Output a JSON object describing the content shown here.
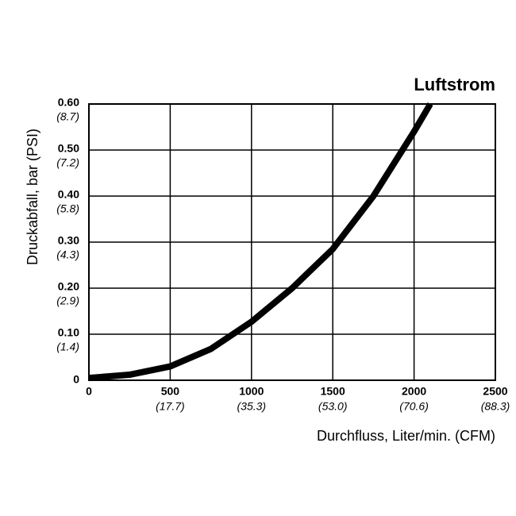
{
  "chart_data": {
    "type": "line",
    "title": "Luftstrom",
    "x_label": "Durchfluss, Liter/min. (CFM)",
    "y_label": "Druckabfall, bar (PSI)",
    "series": [
      {
        "name": null,
        "color": "#000000",
        "x": [
          0,
          250,
          500,
          750,
          1000,
          1250,
          1500,
          1750,
          2000,
          2100
        ],
        "values": [
          0.005,
          0.012,
          0.03,
          0.068,
          0.127,
          0.2,
          0.285,
          0.4,
          0.54,
          0.6
        ]
      }
    ],
    "xlim": [
      0,
      2500
    ],
    "xticks": [
      0,
      500,
      1000,
      1500,
      2000,
      2500
    ],
    "xtick_sublabels": [
      null,
      "(17.7)",
      "(35.3)",
      "(53.0)",
      "(70.6)",
      "(88.3)"
    ],
    "ylim": [
      0,
      0.6
    ],
    "yticks": [
      0,
      {
        "value": 0.1,
        "label": "0.10"
      },
      {
        "value": 0.2,
        "label": "0.20"
      },
      {
        "value": 0.3,
        "label": "0.30"
      },
      {
        "value": 0.4,
        "label": "0.40"
      },
      {
        "value": 0.5,
        "label": "0.50"
      },
      {
        "value": 0.6,
        "label": "0.60"
      }
    ],
    "ytick_sublabels": [
      null,
      "(1.4)",
      "(2.9)",
      "(4.3)",
      "(5.8)",
      "(7.2)",
      "(8.7)"
    ],
    "grid": true
  }
}
